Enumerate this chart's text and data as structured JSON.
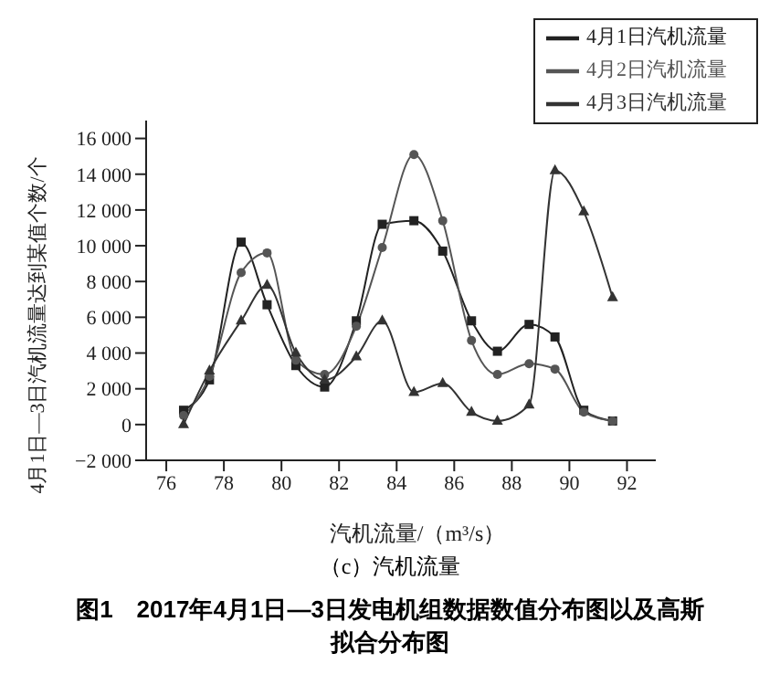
{
  "chart_data": {
    "type": "line",
    "title": "图1　2017年4月1日—3日发电机组数据数值分布图以及高斯拟合分布图",
    "subtitle": "（c）汽机流量",
    "xlabel": "汽机流量/（m³/s）",
    "ylabel": "4月1日—3日汽机流量达到某值个数/个",
    "x": [
      76.6,
      77.5,
      78.6,
      79.5,
      80.5,
      81.5,
      82.6,
      83.5,
      84.6,
      85.6,
      86.6,
      87.5,
      88.6,
      89.5,
      90.5,
      91.5
    ],
    "series": [
      {
        "name": "4月1日汽机流量",
        "color": "#222222",
        "marker": "square",
        "values": [
          800,
          2500,
          10200,
          6700,
          3300,
          2100,
          5800,
          11200,
          11400,
          9700,
          5800,
          4100,
          5600,
          4900,
          800,
          200
        ]
      },
      {
        "name": "4月2日汽机流量",
        "color": "#555555",
        "marker": "circle",
        "values": [
          500,
          2700,
          8500,
          9600,
          3600,
          2800,
          5500,
          9900,
          15100,
          11400,
          4700,
          2800,
          3400,
          3100,
          700,
          200
        ]
      },
      {
        "name": "4月3日汽机流量",
        "color": "#333333",
        "marker": "triangle",
        "values": [
          0,
          3000,
          5800,
          7800,
          4000,
          2500,
          3800,
          5800,
          1800,
          2300,
          700,
          200,
          1100,
          14200,
          11900,
          7100
        ]
      }
    ],
    "xlim": [
      75.3,
      93
    ],
    "xticks": [
      76,
      78,
      80,
      82,
      84,
      86,
      88,
      90,
      92
    ],
    "ylim": [
      -2000,
      17000
    ],
    "yticks": [
      {
        "value": -2000,
        "label": "−2 000"
      },
      0,
      {
        "value": 2000,
        "label": "2 000"
      },
      {
        "value": 4000,
        "label": "4 000"
      },
      {
        "value": 6000,
        "label": "6 000"
      },
      {
        "value": 8000,
        "label": "8 000"
      },
      {
        "value": 10000,
        "label": "10 000"
      },
      {
        "value": 12000,
        "label": "12 000"
      },
      {
        "value": 14000,
        "label": "14 000"
      },
      {
        "value": 16000,
        "label": "16 000"
      }
    ],
    "grid": false,
    "legend": "top right",
    "line_style": "solid"
  }
}
